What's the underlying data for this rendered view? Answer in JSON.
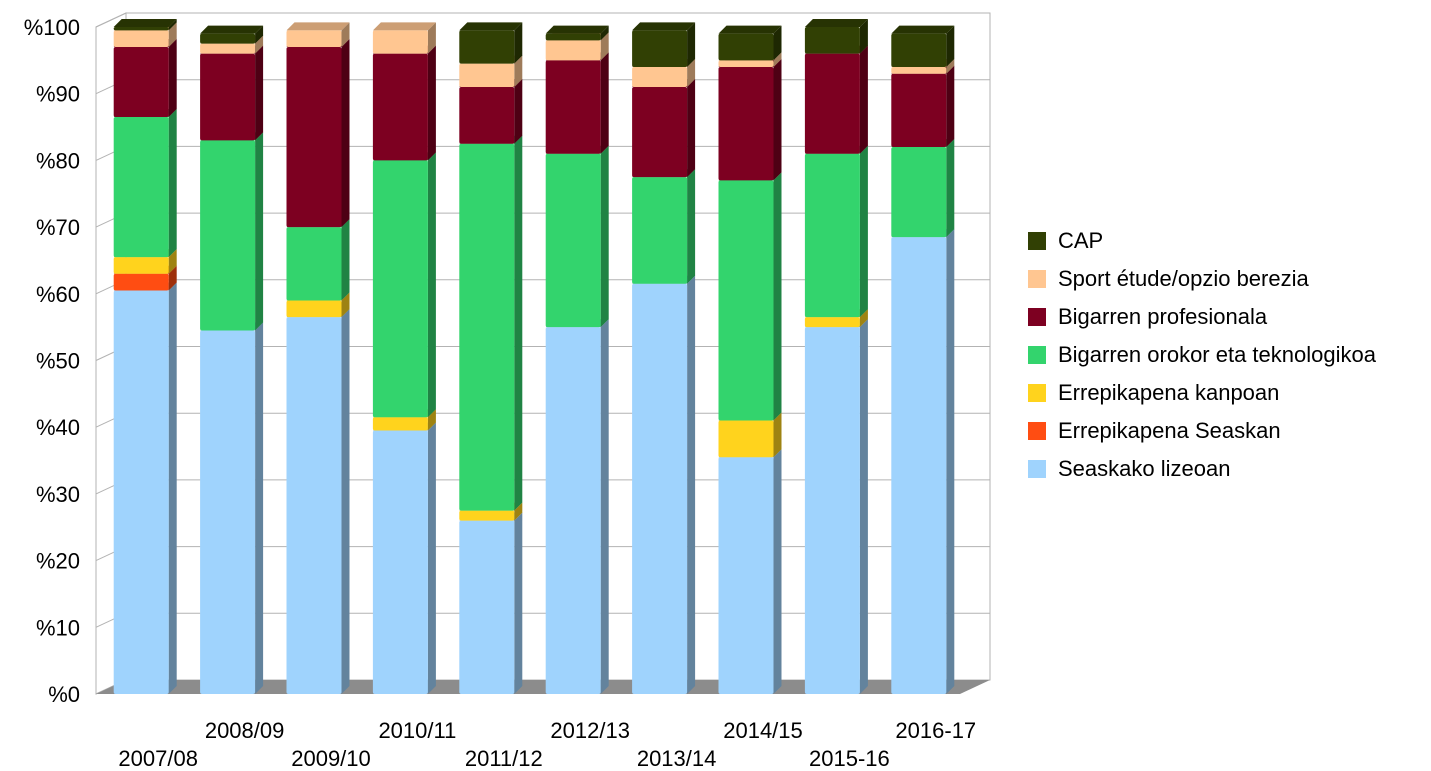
{
  "chart_data": {
    "type": "bar",
    "stacked": true,
    "three_d": true,
    "grid": true,
    "legend_position": "right",
    "ylim": [
      0,
      100
    ],
    "y_ticks": [
      "%0",
      "%10",
      "%20",
      "%30",
      "%40",
      "%50",
      "%60",
      "%70",
      "%80",
      "%90",
      "%100"
    ],
    "categories": [
      "2007/08",
      "2008/09",
      "2009/10",
      "2010/11",
      "2011/12",
      "2012/13",
      "2013/14",
      "2014/15",
      "2015-16",
      "2016-17"
    ],
    "series": [
      {
        "name": "Seaskako lizeoan",
        "color": "#9fd3fd",
        "values": [
          60.5,
          54.5,
          56.5,
          39.5,
          26,
          55,
          61.5,
          35.5,
          55,
          68.5
        ]
      },
      {
        "name": "Errepikapena Seaskan",
        "color": "#ff4d12",
        "values": [
          2.5,
          0,
          0,
          0,
          0,
          0,
          0,
          0,
          0,
          0
        ]
      },
      {
        "name": "Errepikapena kanpoan",
        "color": "#ffd31d",
        "values": [
          2.5,
          0,
          2.5,
          2,
          1.5,
          0,
          0,
          5.5,
          1.5,
          0
        ]
      },
      {
        "name": "Bigarren orokor eta teknologikoa",
        "color": "#33d46d",
        "values": [
          21,
          28.5,
          11,
          38.5,
          55,
          26,
          16,
          36,
          24.5,
          13.5
        ]
      },
      {
        "name": "Bigarren profesionala",
        "color": "#7d0021",
        "values": [
          10.5,
          13,
          27,
          16,
          8.5,
          14,
          13.5,
          17,
          15,
          11
        ]
      },
      {
        "name": "Sport étude/opzio berezia",
        "color": "#ffc691",
        "values": [
          2.5,
          1.5,
          2.5,
          3.5,
          3.5,
          3,
          3,
          1,
          0,
          1
        ]
      },
      {
        "name": "CAP",
        "color": "#314004",
        "values": [
          0.5,
          1.5,
          0,
          0,
          5,
          1,
          5.5,
          4,
          4,
          5
        ]
      }
    ]
  }
}
